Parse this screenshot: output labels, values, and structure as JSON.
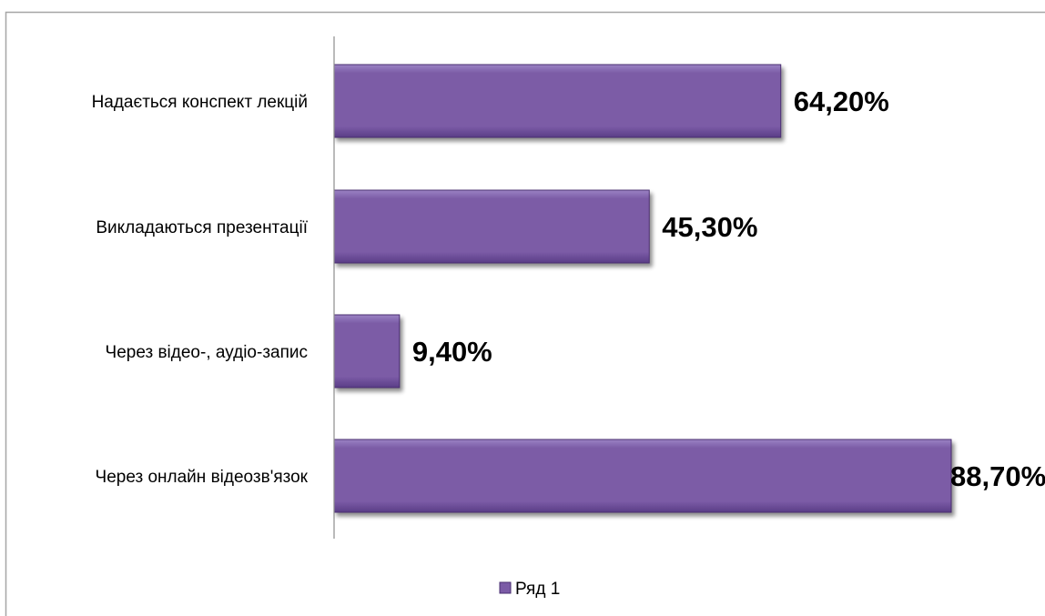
{
  "chart_data": {
    "type": "bar",
    "orientation": "horizontal",
    "categories": [
      "Надається конспект лекцій",
      "Викладаються презентації",
      "Через відео-, аудіо-запис",
      "Через онлайн відеозв'язок"
    ],
    "series": [
      {
        "name": "Ряд 1",
        "values": [
          64.2,
          45.3,
          9.4,
          88.7
        ],
        "labels": [
          "64,20%",
          "45,30%",
          "9,40%",
          "88,70%"
        ]
      }
    ],
    "xlim": [
      0,
      100
    ],
    "grid": false,
    "legend_position": "bottom",
    "colors": {
      "bar_top": "#9b83c4",
      "bar_mid": "#7b5ba6",
      "bar_bottom": "#5a3d86",
      "bar_edge": "#4a2f70",
      "border": "#a6a6a6",
      "axis": "#8c8c8c"
    }
  }
}
